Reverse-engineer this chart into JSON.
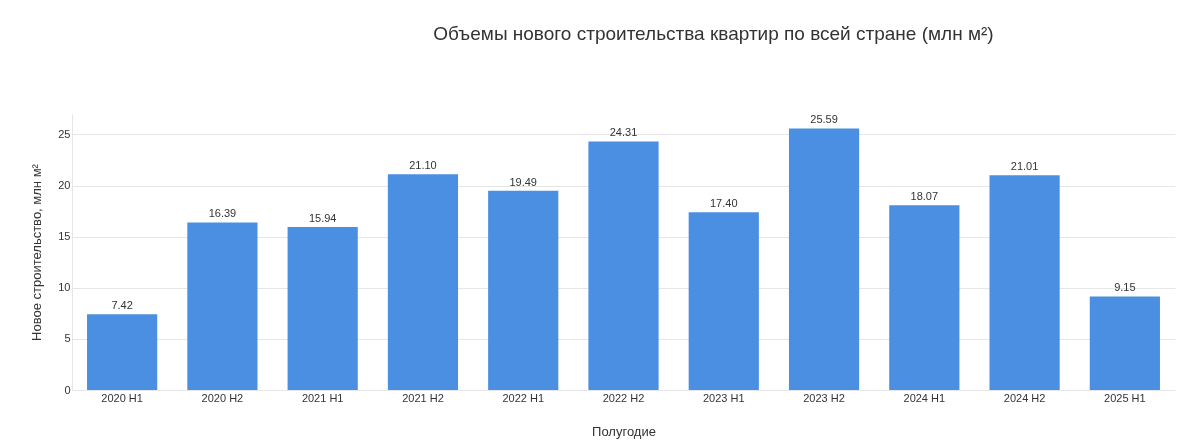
{
  "chart_data": {
    "type": "bar",
    "title": "Объемы нового строительства квартир по всей стране (млн м²)",
    "xlabel": "Полугодие",
    "ylabel": "Новое строительство, млн м²",
    "categories": [
      "2020 H1",
      "2020 H2",
      "2021 H1",
      "2021 H2",
      "2022 H1",
      "2022 H2",
      "2023 H1",
      "2023 H2",
      "2024 H1",
      "2024 H2",
      "2025 H1"
    ],
    "values": [
      7.42,
      16.39,
      15.94,
      21.1,
      19.49,
      24.31,
      17.4,
      25.59,
      18.07,
      21.01,
      9.15
    ],
    "value_labels": [
      "7.42",
      "16.39",
      "15.94",
      "21.10",
      "19.49",
      "24.31",
      "17.40",
      "25.59",
      "18.07",
      "21.01",
      "9.15"
    ],
    "color": "#4a8fe2",
    "ylim": [
      0,
      27
    ],
    "yticks": [
      0,
      5,
      10,
      15,
      20,
      25
    ],
    "grid": "y"
  }
}
